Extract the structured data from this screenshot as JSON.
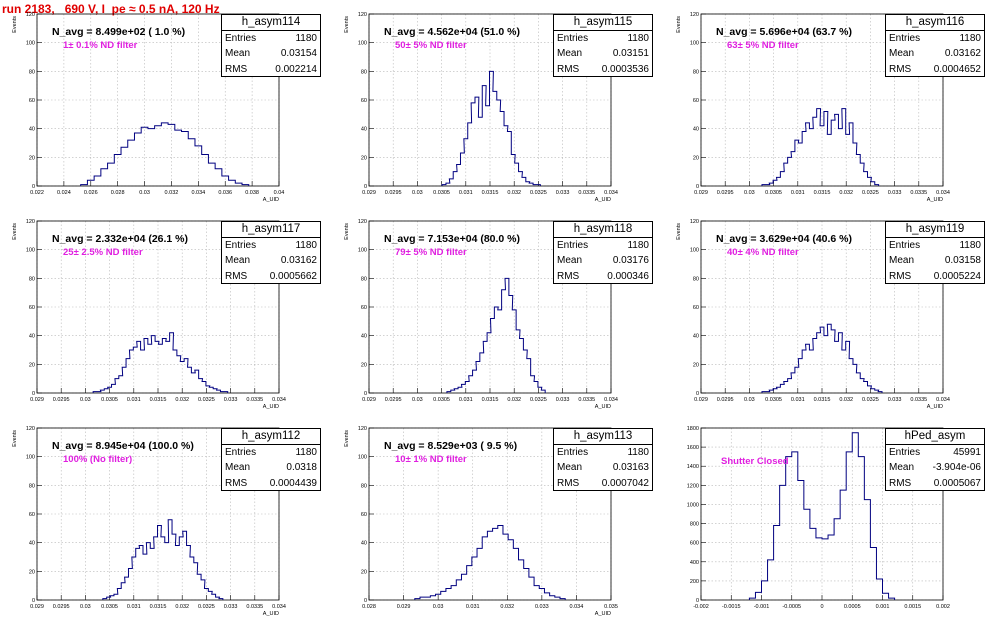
{
  "page_title": "run 2183,   690 V, I_pe ≈ 0.5 nA, 120 Hz",
  "colors": {
    "histogram": "#000080",
    "title": "#e00000",
    "filter_label": "#e020e0",
    "grid": "#b8b8b8"
  },
  "chart_data": [
    {
      "type": "bar",
      "name": "h_asym114",
      "n_avg": "N_avg = 8.499e+02 ( 1.0 %)",
      "filter": "1± 0.1% ND filter",
      "stats": {
        "entries": "1180",
        "mean": "0.03154",
        "rms": "0.002214"
      },
      "xlim": [
        0.022,
        0.04
      ],
      "xticks": [
        "0.022",
        "0.024",
        "0.026",
        "0.028",
        "0.03",
        "0.032",
        "0.034",
        "0.036",
        "0.038",
        "0.04"
      ],
      "ylim": [
        0,
        120
      ],
      "yticks": [
        "0",
        "20",
        "40",
        "60",
        "80",
        "100",
        "120"
      ],
      "ylabel": "Events",
      "xlabel": "A_UID",
      "grid": true,
      "x": [
        0.0255,
        0.026,
        0.0265,
        0.027,
        0.0275,
        0.028,
        0.0285,
        0.029,
        0.0295,
        0.03,
        0.0305,
        0.031,
        0.0315,
        0.032,
        0.0325,
        0.033,
        0.0335,
        0.034,
        0.0345,
        0.035,
        0.0355,
        0.036,
        0.0365,
        0.037,
        0.0375
      ],
      "values": [
        1,
        4,
        7,
        12,
        16,
        22,
        27,
        32,
        37,
        41,
        40,
        42,
        44,
        43,
        39,
        38,
        33,
        28,
        22,
        16,
        12,
        7,
        4,
        2,
        1
      ]
    },
    {
      "type": "bar",
      "name": "h_asym115",
      "n_avg": "N_avg = 4.562e+04 (51.0 %)",
      "filter": "50± 5% ND filter",
      "stats": {
        "entries": "1180",
        "mean": "0.03151",
        "rms": "0.0003536"
      },
      "xlim": [
        0.029,
        0.034
      ],
      "xticks": [
        "0.029",
        "0.0295",
        "0.03",
        "0.0305",
        "0.031",
        "0.0315",
        "0.032",
        "0.0325",
        "0.033",
        "0.0335",
        "0.034"
      ],
      "ylim": [
        0,
        120
      ],
      "yticks": [
        "0",
        "20",
        "40",
        "60",
        "80",
        "100",
        "120"
      ],
      "ylabel": "Events",
      "xlabel": "A_UID",
      "grid": true,
      "x": [
        0.03055,
        0.03063,
        0.0307,
        0.03078,
        0.03085,
        0.03093,
        0.031,
        0.03108,
        0.03115,
        0.03123,
        0.0313,
        0.03138,
        0.03145,
        0.03153,
        0.0316,
        0.03168,
        0.03175,
        0.03183,
        0.0319,
        0.03198,
        0.03205,
        0.03213,
        0.0322,
        0.03228,
        0.03235,
        0.03243,
        0.0325
      ],
      "values": [
        1,
        2,
        5,
        10,
        15,
        23,
        33,
        44,
        58,
        62,
        48,
        70,
        56,
        80,
        66,
        60,
        52,
        42,
        38,
        22,
        16,
        10,
        6,
        3,
        2,
        1,
        1
      ]
    },
    {
      "type": "bar",
      "name": "h_asym116",
      "n_avg": "N_avg = 5.696e+04 (63.7 %)",
      "filter": "63± 5% ND filter",
      "stats": {
        "entries": "1180",
        "mean": "0.03162",
        "rms": "0.0004652"
      },
      "xlim": [
        0.029,
        0.034
      ],
      "xticks": [
        "0.029",
        "0.0295",
        "0.03",
        "0.0305",
        "0.031",
        "0.0315",
        "0.032",
        "0.0325",
        "0.033",
        "0.0335",
        "0.034"
      ],
      "ylim": [
        0,
        120
      ],
      "yticks": [
        "0",
        "20",
        "40",
        "60",
        "80",
        "100",
        "120"
      ],
      "ylabel": "Events",
      "xlabel": "A_UID",
      "grid": true,
      "x": [
        0.0303,
        0.03038,
        0.03045,
        0.03053,
        0.0306,
        0.03068,
        0.03075,
        0.03083,
        0.0309,
        0.03098,
        0.03105,
        0.03113,
        0.0312,
        0.03128,
        0.03135,
        0.03143,
        0.0315,
        0.03158,
        0.03165,
        0.03173,
        0.0318,
        0.03188,
        0.03195,
        0.03203,
        0.0321,
        0.03218,
        0.03225,
        0.03233,
        0.0324,
        0.03248,
        0.03255,
        0.03263
      ],
      "values": [
        1,
        1,
        2,
        4,
        6,
        10,
        16,
        20,
        24,
        32,
        30,
        38,
        44,
        40,
        48,
        54,
        42,
        52,
        36,
        46,
        50,
        40,
        54,
        36,
        44,
        30,
        22,
        16,
        10,
        6,
        3,
        1
      ]
    },
    {
      "type": "bar",
      "name": "h_asym117",
      "n_avg": "N_avg = 2.332e+04 (26.1 %)",
      "filter": "25± 2.5% ND filter",
      "stats": {
        "entries": "1180",
        "mean": "0.03162",
        "rms": "0.0005662"
      },
      "xlim": [
        0.029,
        0.034
      ],
      "xticks": [
        "0.029",
        "0.0295",
        "0.03",
        "0.0305",
        "0.031",
        "0.0315",
        "0.032",
        "0.0325",
        "0.033",
        "0.0335",
        "0.034"
      ],
      "ylim": [
        0,
        120
      ],
      "yticks": [
        "0",
        "20",
        "40",
        "60",
        "80",
        "100",
        "120"
      ],
      "ylabel": "Events",
      "xlabel": "A_UID",
      "grid": true,
      "x": [
        0.0302,
        0.03028,
        0.03035,
        0.03043,
        0.0305,
        0.03058,
        0.03065,
        0.03073,
        0.0308,
        0.03088,
        0.03095,
        0.03103,
        0.0311,
        0.03118,
        0.03125,
        0.03133,
        0.0314,
        0.03148,
        0.03155,
        0.03163,
        0.0317,
        0.03178,
        0.03185,
        0.03193,
        0.032,
        0.03208,
        0.03215,
        0.03223,
        0.0323,
        0.03238,
        0.03245,
        0.03253,
        0.0326,
        0.03268,
        0.03275,
        0.03283,
        0.0329
      ],
      "values": [
        1,
        1,
        2,
        3,
        4,
        6,
        10,
        12,
        18,
        24,
        30,
        32,
        36,
        30,
        38,
        34,
        40,
        36,
        34,
        38,
        36,
        42,
        30,
        26,
        22,
        24,
        18,
        14,
        16,
        10,
        8,
        5,
        4,
        3,
        2,
        1,
        1
      ]
    },
    {
      "type": "bar",
      "name": "h_asym118",
      "n_avg": "N_avg = 7.153e+04 (80.0 %)",
      "filter": "79± 5% ND filter",
      "stats": {
        "entries": "1180",
        "mean": "0.03176",
        "rms": "0.000346"
      },
      "xlim": [
        0.029,
        0.034
      ],
      "xticks": [
        "0.029",
        "0.0295",
        "0.03",
        "0.0305",
        "0.031",
        "0.0315",
        "0.032",
        "0.0325",
        "0.033",
        "0.0335",
        "0.034"
      ],
      "ylim": [
        0,
        120
      ],
      "yticks": [
        "0",
        "20",
        "40",
        "60",
        "80",
        "100",
        "120"
      ],
      "ylabel": "Events",
      "xlabel": "A_UID",
      "grid": true,
      "x": [
        0.03065,
        0.03073,
        0.0308,
        0.03088,
        0.03095,
        0.03103,
        0.0311,
        0.03118,
        0.03125,
        0.03133,
        0.0314,
        0.03148,
        0.03155,
        0.03163,
        0.0317,
        0.03178,
        0.03185,
        0.03193,
        0.032,
        0.03208,
        0.03215,
        0.03223,
        0.0323,
        0.03238,
        0.03245,
        0.03253,
        0.0326
      ],
      "values": [
        1,
        2,
        3,
        4,
        6,
        8,
        12,
        16,
        22,
        28,
        36,
        42,
        52,
        60,
        58,
        72,
        80,
        68,
        58,
        44,
        38,
        30,
        24,
        12,
        8,
        4,
        2
      ]
    },
    {
      "type": "bar",
      "name": "h_asym119",
      "n_avg": "N_avg = 3.629e+04 (40.6 %)",
      "filter": "40± 4% ND filter",
      "stats": {
        "entries": "1180",
        "mean": "0.03158",
        "rms": "0.0005224"
      },
      "xlim": [
        0.029,
        0.034
      ],
      "xticks": [
        "0.029",
        "0.0295",
        "0.03",
        "0.0305",
        "0.031",
        "0.0315",
        "0.032",
        "0.0325",
        "0.033",
        "0.0335",
        "0.034"
      ],
      "ylim": [
        0,
        120
      ],
      "yticks": [
        "0",
        "20",
        "40",
        "60",
        "80",
        "100",
        "120"
      ],
      "ylabel": "Events",
      "xlabel": "A_UID",
      "grid": true,
      "x": [
        0.0303,
        0.03038,
        0.03045,
        0.03053,
        0.0306,
        0.03068,
        0.03075,
        0.03083,
        0.0309,
        0.03098,
        0.03105,
        0.03113,
        0.0312,
        0.03128,
        0.03135,
        0.03143,
        0.0315,
        0.03158,
        0.03165,
        0.03173,
        0.0318,
        0.03188,
        0.03195,
        0.03203,
        0.0321,
        0.03218,
        0.03225,
        0.03233,
        0.0324,
        0.03248,
        0.03255,
        0.03263,
        0.0327
      ],
      "values": [
        1,
        1,
        2,
        3,
        4,
        6,
        8,
        10,
        14,
        18,
        24,
        30,
        34,
        30,
        38,
        42,
        46,
        40,
        48,
        44,
        36,
        42,
        30,
        36,
        24,
        20,
        14,
        10,
        8,
        5,
        3,
        2,
        1
      ]
    },
    {
      "type": "bar",
      "name": "h_asym112",
      "n_avg": "N_avg = 8.945e+04 (100.0 %)",
      "filter": "100% (No filter)",
      "stats": {
        "entries": "1180",
        "mean": "0.0318",
        "rms": "0.0004439"
      },
      "xlim": [
        0.029,
        0.034
      ],
      "xticks": [
        "0.029",
        "0.0295",
        "0.03",
        "0.0305",
        "0.031",
        "0.0315",
        "0.032",
        "0.0325",
        "0.033",
        "0.0335",
        "0.034"
      ],
      "ylim": [
        0,
        120
      ],
      "yticks": [
        "0",
        "20",
        "40",
        "60",
        "80",
        "100",
        "120"
      ],
      "ylabel": "Events",
      "xlabel": "A_UID",
      "grid": true,
      "x": [
        0.0304,
        0.03048,
        0.03055,
        0.03063,
        0.0307,
        0.03078,
        0.03085,
        0.03093,
        0.031,
        0.03108,
        0.03115,
        0.03123,
        0.0313,
        0.03138,
        0.03145,
        0.03153,
        0.0316,
        0.03168,
        0.03175,
        0.03183,
        0.0319,
        0.03198,
        0.03205,
        0.03213,
        0.0322,
        0.03228,
        0.03235,
        0.03243,
        0.0325,
        0.03258,
        0.03265,
        0.03273,
        0.0328
      ],
      "values": [
        1,
        2,
        3,
        4,
        8,
        12,
        16,
        22,
        30,
        36,
        38,
        32,
        40,
        36,
        44,
        52,
        44,
        40,
        56,
        46,
        38,
        44,
        48,
        38,
        30,
        26,
        18,
        14,
        8,
        6,
        4,
        2,
        1
      ]
    },
    {
      "type": "bar",
      "name": "h_asym113",
      "n_avg": "N_avg = 8.529e+03 ( 9.5 %)",
      "filter": "10± 1% ND filter",
      "stats": {
        "entries": "1180",
        "mean": "0.03163",
        "rms": "0.0007042"
      },
      "xlim": [
        0.028,
        0.035
      ],
      "xticks": [
        "0.028",
        "0.029",
        "0.03",
        "0.031",
        "0.032",
        "0.033",
        "0.034",
        "0.035"
      ],
      "ylim": [
        0,
        120
      ],
      "yticks": [
        "0",
        "20",
        "40",
        "60",
        "80",
        "100",
        "120"
      ],
      "ylabel": "Events",
      "xlabel": "A_UID",
      "grid": true,
      "x": [
        0.0294,
        0.02955,
        0.0297,
        0.02985,
        0.03,
        0.03015,
        0.0303,
        0.03045,
        0.0306,
        0.03075,
        0.0309,
        0.03105,
        0.0312,
        0.03135,
        0.0315,
        0.03165,
        0.0318,
        0.03195,
        0.0321,
        0.03225,
        0.0324,
        0.03255,
        0.0327,
        0.03285,
        0.033,
        0.03315,
        0.0333,
        0.03345,
        0.0336
      ],
      "values": [
        1,
        2,
        2,
        3,
        4,
        6,
        8,
        10,
        14,
        18,
        24,
        30,
        36,
        44,
        48,
        50,
        52,
        46,
        42,
        36,
        28,
        22,
        16,
        10,
        8,
        5,
        3,
        2,
        1
      ]
    },
    {
      "type": "bar",
      "name": "hPed_asym",
      "filter": "Shutter Closed",
      "stats": {
        "entries": "45991",
        "mean": "-3.904e-06",
        "rms": "0.0005067"
      },
      "xlim": [
        -0.002,
        0.002
      ],
      "xticks": [
        "-0.002",
        "-0.0015",
        "-0.001",
        "-0.0005",
        "0",
        "0.0005",
        "0.001",
        "0.0015",
        "0.002"
      ],
      "ylim": [
        0,
        1800
      ],
      "yticks": [
        "0",
        "200",
        "400",
        "600",
        "800",
        "1000",
        "1200",
        "1400",
        "1600",
        "1800"
      ],
      "xlabel": "",
      "grid": true,
      "x": [
        -0.00115,
        -0.00105,
        -0.00095,
        -0.00085,
        -0.00075,
        -0.00065,
        -0.00055,
        -0.00045,
        -0.00035,
        -0.00025,
        -0.00015,
        -5e-05,
        5e-05,
        0.00015,
        0.00025,
        0.00035,
        0.00045,
        0.00055,
        0.00065,
        0.00075,
        0.00085,
        0.00095,
        0.00105,
        0.00115
      ],
      "values": [
        20,
        80,
        200,
        420,
        780,
        1200,
        1500,
        1550,
        1250,
        950,
        750,
        650,
        640,
        680,
        850,
        1150,
        1550,
        1750,
        1500,
        1050,
        550,
        220,
        70,
        20
      ]
    }
  ]
}
